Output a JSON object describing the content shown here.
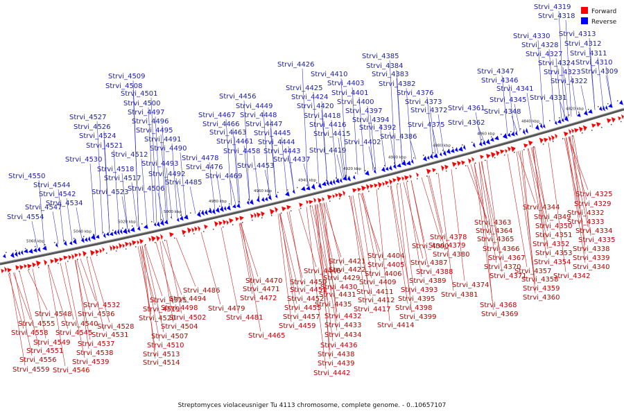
{
  "caption": "Streptomyces violaceusniger Tu 4113 chromosome, complete genome. - 0..10657107",
  "legend": [
    {
      "label": "Forward",
      "color": "#ff0000"
    },
    {
      "label": "Reverse",
      "color": "#0000ff"
    }
  ],
  "kbp_labels": [
    "5060 kbp",
    "5040 kbp",
    "5020 kbp",
    "5000 kbp",
    "4980 kbp",
    "4960 kbp",
    "4940 kbp",
    "4920 kbp",
    "4900 kbp",
    "4880 kbp",
    "4860 kbp",
    "4840 kbp",
    "4820 kbp"
  ],
  "reverse_genes": [
    "Strvi_4554",
    "Strvi_4547",
    "Strvi_4550",
    "Strvi_4544",
    "Strvi_4542",
    "Strvi_4534",
    "Strvi_4530",
    "Strvi_4527",
    "Strvi_4526",
    "Strvi_4524",
    "Strvi_4521",
    "Strvi_4523",
    "Strvi_4518",
    "Strvi_4517",
    "Strvi_4512",
    "Strvi_4509",
    "Strvi_4508",
    "Strvi_4501",
    "Strvi_4500",
    "Strvi_4497",
    "Strvi_4496",
    "Strvi_4495",
    "Strvi_4491",
    "Strvi_4490",
    "Strvi_4493",
    "Strvi_4492",
    "Strvi_4506",
    "Strvi_4485",
    "Strvi_4478",
    "Strvi_4476",
    "Strvi_4469",
    "Strvi_4467",
    "Strvi_4466",
    "Strvi_4463",
    "Strvi_4461",
    "Strvi_4458",
    "Strvi_4456",
    "Strvi_4449",
    "Strvi_4448",
    "Strvi_4447",
    "Strvi_4445",
    "Strvi_4444",
    "Strvi_4443",
    "Strvi_4453",
    "Strvi_4437",
    "Strvi_4426",
    "Strvi_4425",
    "Strvi_4424",
    "Strvi_4420",
    "Strvi_4418",
    "Strvi_4416",
    "Strvi_4415",
    "Strvi_4419",
    "Strvi_4410",
    "Strvi_4403",
    "Strvi_4401",
    "Strvi_4400",
    "Strvi_4397",
    "Strvi_4394",
    "Strvi_4392",
    "Strvi_4402",
    "Strvi_4385",
    "Strvi_4384",
    "Strvi_4383",
    "Strvi_4382",
    "Strvi_4376",
    "Strvi_4373",
    "Strvi_4372",
    "Strvi_4386",
    "Strvi_4375",
    "Strvi_4361",
    "Strvi_4362",
    "Strvi_4347",
    "Strvi_4346",
    "Strvi_4341",
    "Strvi_4345",
    "Strvi_4348",
    "Strvi_4331",
    "Strvi_4330",
    "Strvi_4328",
    "Strvi_4327",
    "Strvi_4324",
    "Strvi_4323",
    "Strvi_4322",
    "Strvi_4319",
    "Strvi_4318",
    "Strvi_4313",
    "Strvi_4312",
    "Strvi_4311",
    "Strvi_4310",
    "Strvi_4309"
  ],
  "forward_genes": [
    "Strvi_4548",
    "Strvi_4555",
    "Strvi_4558",
    "Strvi_4549",
    "Strvi_4551",
    "Strvi_4556",
    "Strvi_4559",
    "Strvi_4540",
    "Strvi_4545",
    "Strvi_4546",
    "Strvi_4532",
    "Strvi_4536",
    "Strvi_4528",
    "Strvi_4531",
    "Strvi_4537",
    "Strvi_4538",
    "Strvi_4539",
    "Strvi_4515",
    "Strvi_4519",
    "Strvi_4520",
    "Strvi_4507",
    "Strvi_4510",
    "Strvi_4513",
    "Strvi_4514",
    "Strvi_4494",
    "Strvi_4498",
    "Strvi_4502",
    "Strvi_4504",
    "Strvi_4486",
    "Strvi_4470",
    "Strvi_4471",
    "Strvi_4472",
    "Strvi_4479",
    "Strvi_4481",
    "Strvi_4450",
    "Strvi_4451",
    "Strvi_4452",
    "Strvi_4455",
    "Strvi_4457",
    "Strvi_4459",
    "Strvi_4465",
    "Strvi_4446",
    "Strvi_4429",
    "Strvi_4430",
    "Strvi_4431",
    "Strvi_4435",
    "Strvi_4432",
    "Strvi_4433",
    "Strvi_4434",
    "Strvi_4436",
    "Strvi_4438",
    "Strvi_4439",
    "Strvi_4442",
    "Strvi_4421",
    "Strvi_4422",
    "Strvi_4409",
    "Strvi_4411",
    "Strvi_4412",
    "Strvi_4417",
    "Strvi_4414",
    "Strvi_4404",
    "Strvi_4405",
    "Strvi_4406",
    "Strvi_4390",
    "Strvi_4387",
    "Strvi_4388",
    "Strvi_4389",
    "Strvi_4393",
    "Strvi_4395",
    "Strvi_4398",
    "Strvi_4399",
    "Strvi_4378",
    "Strvi_4379",
    "Strvi_4380",
    "Strvi_4381",
    "Strvi_4374",
    "Strvi_4363",
    "Strvi_4364",
    "Strvi_4365",
    "Strvi_4366",
    "Strvi_4367",
    "Strvi_4370",
    "Strvi_4371",
    "Strvi_4368",
    "Strvi_4369",
    "Strvi_4344",
    "Strvi_4349",
    "Strvi_4350",
    "Strvi_4351",
    "Strvi_4352",
    "Strvi_4353",
    "Strvi_4354",
    "Strvi_4357",
    "Strvi_4358",
    "Strvi_4359",
    "Strvi_4360",
    "Strvi_4325",
    "Strvi_4329",
    "Strvi_4332",
    "Strvi_4333",
    "Strvi_4334",
    "Strvi_4335",
    "Strvi_4338",
    "Strvi_4339",
    "Strvi_4340",
    "Strvi_4342"
  ]
}
